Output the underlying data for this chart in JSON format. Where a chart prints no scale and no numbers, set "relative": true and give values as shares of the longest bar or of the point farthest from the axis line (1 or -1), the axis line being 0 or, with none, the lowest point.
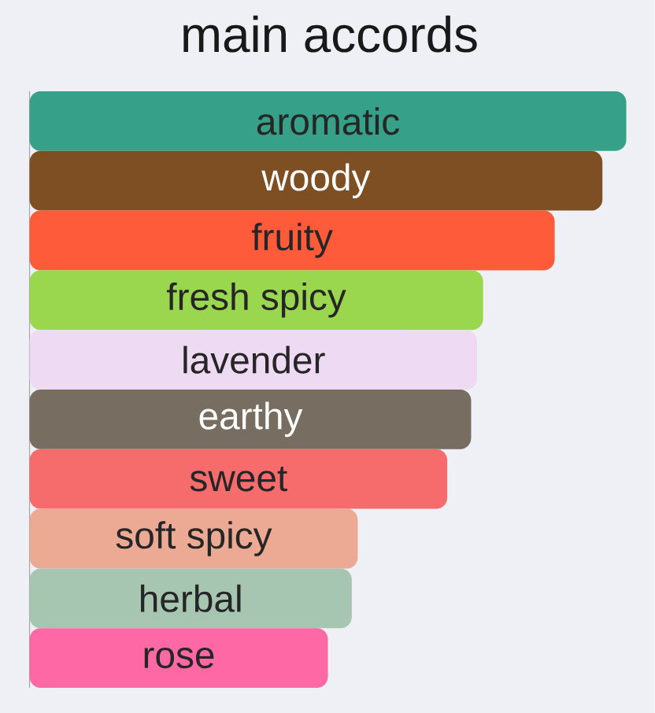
{
  "chart_data": {
    "type": "bar",
    "orientation": "horizontal",
    "relative": true,
    "title": "main accords",
    "categories": [
      "aromatic",
      "woody",
      "fruity",
      "fresh spicy",
      "lavender",
      "earthy",
      "sweet",
      "soft spicy",
      "herbal",
      "rose"
    ],
    "values": [
      1,
      0.96,
      0.88,
      0.76,
      0.75,
      0.74,
      0.7,
      0.55,
      0.54,
      0.5
    ],
    "colors": [
      "#37a089",
      "#7d4f22",
      "#fe5b3a",
      "#9bd64f",
      "#efdaf4",
      "#786d61",
      "#f66b6b",
      "#eca993",
      "#a6c6b2",
      "#fe69a5"
    ]
  }
}
